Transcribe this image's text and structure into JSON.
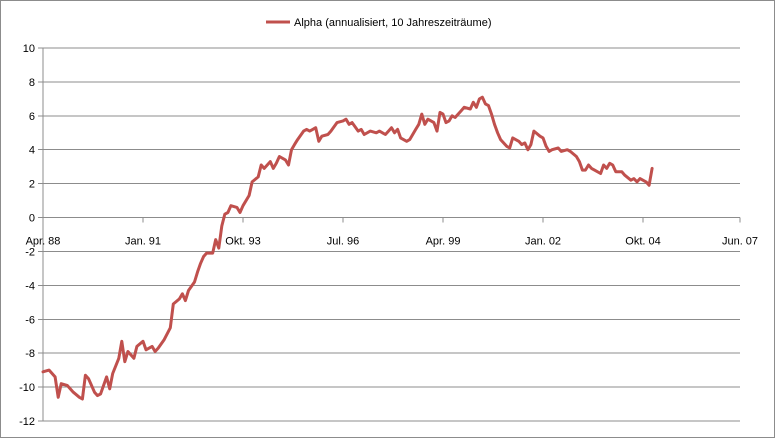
{
  "chart_data": {
    "type": "line",
    "title": "",
    "xlabel": "",
    "ylabel": "",
    "ylim": [
      -12,
      10
    ],
    "ytick_step": 2,
    "x_tick_labels": [
      "Apr. 88",
      "Jan. 91",
      "Okt. 93",
      "Jul. 96",
      "Apr. 99",
      "Jan. 02",
      "Okt. 04",
      "Jun. 07"
    ],
    "x_tick_dates": [
      "1988-04",
      "1991-01",
      "1993-10",
      "1996-07",
      "1999-04",
      "2002-01",
      "2004-10",
      "2007-06"
    ],
    "xlim": [
      "1988-04",
      "2007-06"
    ],
    "grid": "horizontal",
    "legend": "top-center",
    "series": [
      {
        "name": "Alpha (annualisiert, 10 Jahreszeiträume)",
        "color": "#c0504d",
        "points": [
          [
            "1988-04",
            -9.1
          ],
          [
            "1988-06",
            -9.0
          ],
          [
            "1988-08",
            -9.4
          ],
          [
            "1988-09",
            -10.6
          ],
          [
            "1988-10",
            -9.8
          ],
          [
            "1988-12",
            -9.9
          ],
          [
            "1989-02",
            -10.3
          ],
          [
            "1989-04",
            -10.6
          ],
          [
            "1989-05",
            -10.7
          ],
          [
            "1989-06",
            -9.3
          ],
          [
            "1989-07",
            -9.5
          ],
          [
            "1989-09",
            -10.3
          ],
          [
            "1989-10",
            -10.5
          ],
          [
            "1989-11",
            -10.4
          ],
          [
            "1990-01",
            -9.4
          ],
          [
            "1990-02",
            -10.1
          ],
          [
            "1990-03",
            -9.2
          ],
          [
            "1990-05",
            -8.3
          ],
          [
            "1990-06",
            -7.3
          ],
          [
            "1990-07",
            -8.5
          ],
          [
            "1990-08",
            -7.9
          ],
          [
            "1990-10",
            -8.3
          ],
          [
            "1990-11",
            -7.6
          ],
          [
            "1991-01",
            -7.3
          ],
          [
            "1991-02",
            -7.8
          ],
          [
            "1991-04",
            -7.6
          ],
          [
            "1991-05",
            -7.9
          ],
          [
            "1991-06",
            -7.7
          ],
          [
            "1991-08",
            -7.2
          ],
          [
            "1991-10",
            -6.5
          ],
          [
            "1991-11",
            -5.1
          ],
          [
            "1992-01",
            -4.8
          ],
          [
            "1992-02",
            -4.5
          ],
          [
            "1992-03",
            -4.9
          ],
          [
            "1992-04",
            -4.3
          ],
          [
            "1992-06",
            -3.8
          ],
          [
            "1992-07",
            -3.2
          ],
          [
            "1992-08",
            -2.7
          ],
          [
            "1992-09",
            -2.3
          ],
          [
            "1992-10",
            -2.1
          ],
          [
            "1992-12",
            -2.1
          ],
          [
            "1993-01",
            -1.3
          ],
          [
            "1993-02",
            -1.8
          ],
          [
            "1993-03",
            -0.5
          ],
          [
            "1993-04",
            0.2
          ],
          [
            "1993-05",
            0.3
          ],
          [
            "1993-06",
            0.7
          ],
          [
            "1993-08",
            0.6
          ],
          [
            "1993-09",
            0.3
          ],
          [
            "1993-10",
            0.7
          ],
          [
            "1993-12",
            1.3
          ],
          [
            "1994-01",
            2.1
          ],
          [
            "1994-03",
            2.4
          ],
          [
            "1994-04",
            3.1
          ],
          [
            "1994-05",
            2.9
          ],
          [
            "1994-07",
            3.3
          ],
          [
            "1994-08",
            2.9
          ],
          [
            "1994-09",
            3.2
          ],
          [
            "1994-10",
            3.6
          ],
          [
            "1994-12",
            3.4
          ],
          [
            "1995-01",
            3.1
          ],
          [
            "1995-02",
            4.0
          ],
          [
            "1995-03",
            4.3
          ],
          [
            "1995-04",
            4.6
          ],
          [
            "1995-06",
            5.1
          ],
          [
            "1995-07",
            5.2
          ],
          [
            "1995-08",
            5.1
          ],
          [
            "1995-09",
            5.2
          ],
          [
            "1995-10",
            5.3
          ],
          [
            "1995-11",
            4.5
          ],
          [
            "1995-12",
            4.8
          ],
          [
            "1996-02",
            4.9
          ],
          [
            "1996-03",
            5.1
          ],
          [
            "1996-05",
            5.6
          ],
          [
            "1996-07",
            5.7
          ],
          [
            "1996-08",
            5.8
          ],
          [
            "1996-09",
            5.5
          ],
          [
            "1996-10",
            5.6
          ],
          [
            "1996-12",
            5.1
          ],
          [
            "1997-01",
            5.2
          ],
          [
            "1997-02",
            4.9
          ],
          [
            "1997-04",
            5.1
          ],
          [
            "1997-06",
            5.0
          ],
          [
            "1997-07",
            5.1
          ],
          [
            "1997-09",
            4.9
          ],
          [
            "1997-10",
            5.1
          ],
          [
            "1997-11",
            5.3
          ],
          [
            "1997-12",
            5.0
          ],
          [
            "1998-01",
            5.2
          ],
          [
            "1998-02",
            4.7
          ],
          [
            "1998-04",
            4.5
          ],
          [
            "1998-05",
            4.6
          ],
          [
            "1998-07",
            5.2
          ],
          [
            "1998-08",
            5.5
          ],
          [
            "1998-09",
            6.1
          ],
          [
            "1998-10",
            5.5
          ],
          [
            "1998-11",
            5.8
          ],
          [
            "1999-01",
            5.6
          ],
          [
            "1999-02",
            5.1
          ],
          [
            "1999-03",
            6.2
          ],
          [
            "1999-04",
            6.1
          ],
          [
            "1999-05",
            5.6
          ],
          [
            "1999-06",
            5.7
          ],
          [
            "1999-07",
            6.0
          ],
          [
            "1999-08",
            5.9
          ],
          [
            "1999-10",
            6.3
          ],
          [
            "1999-11",
            6.5
          ],
          [
            "2000-01",
            6.4
          ],
          [
            "2000-02",
            6.8
          ],
          [
            "2000-03",
            6.5
          ],
          [
            "2000-04",
            7.0
          ],
          [
            "2000-05",
            7.1
          ],
          [
            "2000-06",
            6.7
          ],
          [
            "2000-07",
            6.6
          ],
          [
            "2000-08",
            6.1
          ],
          [
            "2000-09",
            5.5
          ],
          [
            "2000-10",
            5.0
          ],
          [
            "2000-11",
            4.6
          ],
          [
            "2001-01",
            4.2
          ],
          [
            "2001-02",
            4.1
          ],
          [
            "2001-03",
            4.7
          ],
          [
            "2001-05",
            4.5
          ],
          [
            "2001-06",
            4.3
          ],
          [
            "2001-07",
            4.4
          ],
          [
            "2001-08",
            4.0
          ],
          [
            "2001-09",
            4.3
          ],
          [
            "2001-10",
            5.1
          ],
          [
            "2001-12",
            4.8
          ],
          [
            "2002-01",
            4.7
          ],
          [
            "2002-02",
            4.2
          ],
          [
            "2002-03",
            3.9
          ],
          [
            "2002-04",
            4.0
          ],
          [
            "2002-06",
            4.1
          ],
          [
            "2002-07",
            3.9
          ],
          [
            "2002-09",
            4.0
          ],
          [
            "2002-10",
            3.9
          ],
          [
            "2002-12",
            3.6
          ],
          [
            "2003-01",
            3.3
          ],
          [
            "2003-02",
            2.8
          ],
          [
            "2003-03",
            2.8
          ],
          [
            "2003-04",
            3.1
          ],
          [
            "2003-05",
            2.9
          ],
          [
            "2003-06",
            2.8
          ],
          [
            "2003-08",
            2.6
          ],
          [
            "2003-09",
            3.1
          ],
          [
            "2003-10",
            2.9
          ],
          [
            "2003-11",
            3.2
          ],
          [
            "2003-12",
            3.1
          ],
          [
            "2004-01",
            2.7
          ],
          [
            "2004-03",
            2.7
          ],
          [
            "2004-04",
            2.5
          ],
          [
            "2004-06",
            2.2
          ],
          [
            "2004-07",
            2.3
          ],
          [
            "2004-08",
            2.1
          ],
          [
            "2004-09",
            2.3
          ],
          [
            "2004-11",
            2.1
          ],
          [
            "2004-12",
            1.9
          ],
          [
            "2005-01",
            2.9
          ]
        ]
      }
    ]
  }
}
